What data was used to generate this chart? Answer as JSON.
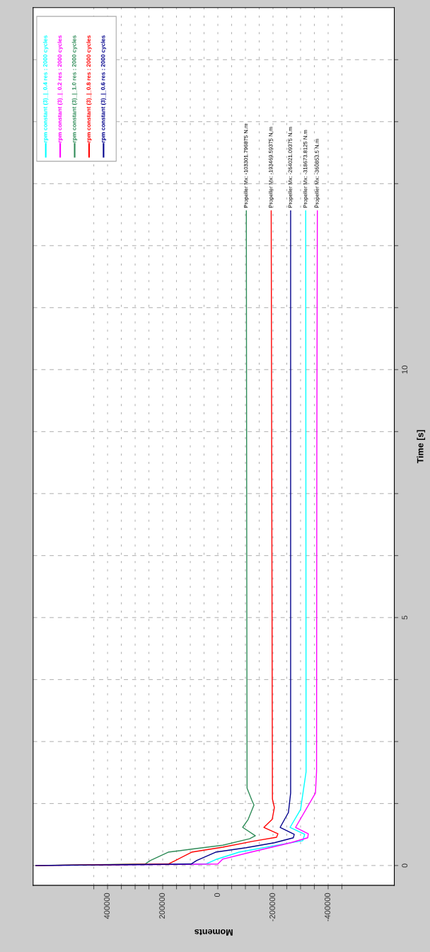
{
  "chart_data": {
    "type": "line",
    "xlabel": "Moments",
    "ylabel": "Time [s]",
    "xlim": [
      670000,
      -640000
    ],
    "ylim": [
      -0.4,
      17.3
    ],
    "yticks": [
      0,
      {
        "value": 1.25,
        "label": null
      },
      {
        "value": 2.5,
        "label": null
      },
      {
        "value": 3.75,
        "label": null
      },
      5,
      {
        "value": 6.25,
        "label": null
      },
      {
        "value": 7.5,
        "label": null
      },
      {
        "value": 8.75,
        "label": null
      },
      10,
      {
        "value": 11.25,
        "label": null
      },
      {
        "value": 12.5,
        "label": null
      },
      {
        "value": 13.75,
        "label": null
      },
      {
        "value": 15,
        "label": null
      },
      {
        "value": 16.25,
        "label": null
      }
    ],
    "xticks": [
      {
        "value": 450000,
        "label": null
      },
      400000,
      {
        "value": 350000,
        "label": null
      },
      {
        "value": 300000,
        "label": null
      },
      {
        "value": 250000,
        "label": null
      },
      200000,
      {
        "value": 150000,
        "label": null
      },
      {
        "value": 100000,
        "label": null
      },
      {
        "value": 50000,
        "label": null
      },
      0,
      {
        "value": -50000,
        "label": null
      },
      {
        "value": -100000,
        "label": null
      },
      {
        "value": -150000,
        "label": null
      },
      -200000,
      {
        "value": -250000,
        "label": null
      },
      {
        "value": -300000,
        "label": null
      },
      {
        "value": -350000,
        "label": null
      },
      -400000,
      {
        "value": -450000,
        "label": null
      }
    ],
    "grid": true,
    "legend": "top left",
    "marker": "none",
    "line_style": "solid",
    "series": [
      {
        "name": "rpm constant (3)_|_0.4 res : 2000 cycles",
        "color": "#00ffff",
        "values": [
          0,
          0.03,
          0.12,
          0.27,
          0.4,
          0.5,
          0.63,
          0.77,
          1.13,
          1.89,
          13.2
        ],
        "x": [
          660000,
          44000,
          8000,
          -77000,
          -205000,
          -308000,
          -315000,
          -262000,
          -300000,
          -320000,
          -318674
        ]
      },
      {
        "name": "rpm constant (3)_|_0.2 res : 2000 cycles",
        "color": "#ff00ff",
        "values": [
          0,
          0.03,
          0.13,
          0.27,
          0.46,
          0.56,
          0.64,
          0.77,
          1.46,
          1.9,
          8.3,
          13.2
        ],
        "x": [
          660000,
          0,
          -18000,
          -120000,
          -264000,
          -326000,
          -328000,
          -282000,
          -354000,
          -358000,
          -359000,
          -360854
        ]
      },
      {
        "name": "rpm constant (3)_|_1.0 res : 2000 cycles",
        "color": "#2e8b57",
        "values": [
          0,
          0.03,
          0.1,
          0.27,
          0.33,
          0.41,
          0.54,
          0.6,
          0.77,
          0.93,
          1.22,
          1.32,
          1.56,
          13.2
        ],
        "x": [
          660000,
          264000,
          245000,
          180000,
          95000,
          -18000,
          -115000,
          -136000,
          -90000,
          -110000,
          -131000,
          -123000,
          -106000,
          -103302
        ]
      },
      {
        "name": "rpm constant (3)_|_0.8 res : 2000 cycles",
        "color": "#ff0000",
        "values": [
          0,
          0.03,
          0.1,
          0.27,
          0.37,
          0.49,
          0.57,
          0.64,
          0.77,
          0.93,
          1.17,
          1.34,
          13.2
        ],
        "x": [
          660000,
          180000,
          154000,
          95000,
          -18000,
          -128000,
          -213000,
          -218000,
          -167000,
          -197000,
          -205000,
          -198000,
          -193470
        ]
      },
      {
        "name": "rpm constant (3)_|_0.6 res : 2000 cycles",
        "color": "#00008b",
        "values": [
          0,
          0.03,
          0.1,
          0.27,
          0.36,
          0.46,
          0.56,
          0.63,
          0.77,
          1.07,
          1.46,
          13.2
        ],
        "x": [
          660000,
          97000,
          77000,
          8000,
          -103000,
          -205000,
          -274000,
          -277000,
          -226000,
          -256000,
          -264000,
          -264021
        ]
      }
    ],
    "annotations": [
      {
        "text": "Propeller Mx: -103301.796875 N.m",
        "x": -103302,
        "y": 13.2
      },
      {
        "text": "Propeller Mx: -193469.59375 N.m",
        "x": -193470,
        "y": 13.2
      },
      {
        "text": "Propeller Mx: -264021.09375 N.m",
        "x": -264021,
        "y": 13.2
      },
      {
        "text": "Propeller Mx: -318673.8125 N.m",
        "x": -318674,
        "y": 13.2
      },
      {
        "text": "Propeller Mx: -360853.5 N.m",
        "x": -360854,
        "y": 13.2
      }
    ]
  }
}
